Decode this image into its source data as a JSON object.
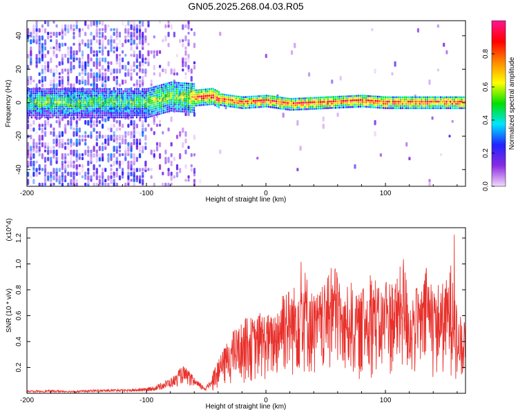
{
  "title": "GN05.2025.268.04.03.R05",
  "chart_data": [
    {
      "type": "heatmap",
      "title": "GN05.2025.268.04.03.R05",
      "xlabel": "Height of straight line (km)",
      "ylabel": "Frequency (Hz)",
      "xlim": [
        -200,
        167
      ],
      "ylim": [
        -50,
        49
      ],
      "xticks": [
        -200,
        -100,
        0,
        100
      ],
      "yticks": [
        -40,
        -20,
        0,
        20,
        40
      ],
      "colorbar": {
        "label": "Normalized spectral amplitude",
        "range": [
          0.0,
          1.0
        ],
        "ticks": [
          "0.0",
          "0.2",
          "0.4",
          "0.6",
          "0.8"
        ],
        "colormap": [
          "#f2d9fb",
          "#8a2be2",
          "#2222ff",
          "#00e5ff",
          "#00e000",
          "#ffff00",
          "#ff8800",
          "#ff0000",
          "#ff1493"
        ]
      },
      "ridge": {
        "x": [
          -100,
          -80,
          -60,
          -45,
          -40,
          -30,
          -20,
          0,
          20,
          50,
          80,
          100,
          130,
          167
        ],
        "frequency": [
          0,
          4,
          3,
          4,
          2,
          1,
          0,
          1,
          -1,
          0,
          1,
          0,
          0,
          0
        ]
      },
      "grid": false
    },
    {
      "type": "line",
      "xlabel": "Height of straight line (km)",
      "ylabel": "SNR (10 * v/v)",
      "y_multiplier": "(x10^4)",
      "xlim": [
        -200,
        167
      ],
      "ylim": [
        0,
        1.28
      ],
      "xticks": [
        -200,
        -100,
        0,
        100
      ],
      "yticks": [
        "0.2",
        "0.4",
        "0.6",
        "0.8",
        "1.0",
        "1.2"
      ],
      "series": [
        {
          "color": "#e8302b",
          "x": [
            -200,
            -180,
            -160,
            -140,
            -120,
            -100,
            -90,
            -80,
            -75,
            -70,
            -65,
            -60,
            -55,
            -50,
            -45,
            -40,
            -35,
            -30,
            -25,
            -20,
            -15,
            -10,
            -5,
            0,
            5,
            10,
            15,
            20,
            25,
            30,
            35,
            40,
            45,
            50,
            55,
            60,
            65,
            70,
            75,
            80,
            85,
            90,
            95,
            100,
            105,
            110,
            115,
            120,
            125,
            130,
            135,
            140,
            145,
            150,
            155,
            158,
            160,
            162,
            165,
            167
          ],
          "values": [
            0.02,
            0.025,
            0.02,
            0.03,
            0.03,
            0.04,
            0.07,
            0.12,
            0.15,
            0.22,
            0.18,
            0.12,
            0.08,
            0.05,
            0.15,
            0.25,
            0.35,
            0.45,
            0.5,
            0.55,
            0.6,
            0.58,
            0.62,
            0.63,
            0.6,
            0.7,
            0.88,
            0.8,
            0.85,
            1.04,
            0.9,
            0.75,
            0.8,
            0.85,
            0.98,
            1.0,
            0.7,
            0.9,
            0.75,
            0.78,
            0.88,
            0.95,
            0.8,
            0.85,
            0.9,
            0.9,
            1.08,
            0.75,
            0.82,
            0.8,
            1.0,
            0.75,
            0.88,
            0.85,
            1.02,
            1.26,
            0.5,
            0.65,
            0.45,
            0.82
          ]
        }
      ],
      "grid": false
    }
  ]
}
